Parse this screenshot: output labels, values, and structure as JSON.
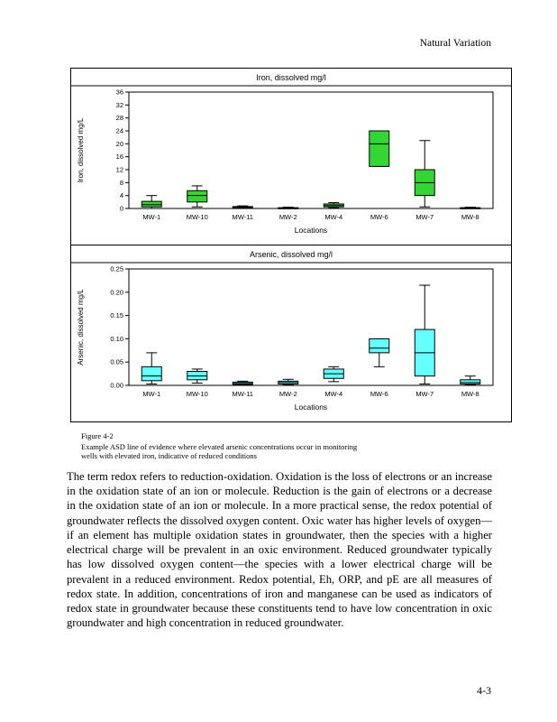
{
  "page": {
    "header_right": "Natural Variation",
    "page_number": "4-3"
  },
  "figure": {
    "caption_label": "Figure 4-2",
    "caption_line1": "Example ASD line of evidence where elevated arsenic concentrations occur in monitoring",
    "caption_line2": "wells with elevated iron, indicative of reduced conditions"
  },
  "body": {
    "paragraph": "The term redox refers to reduction-oxidation. Oxidation is the loss of electrons or an increase in the oxidation state of an ion or molecule. Reduction is the gain of electrons or a decrease in the oxidation state of an ion or molecule. In a more practical sense, the redox potential of groundwater reflects the dissolved oxygen content. Oxic water has higher levels of oxygen—if an element has multiple oxidation states in groundwater, then the species with a higher electrical charge will be prevalent in an oxic environment. Reduced groundwater typically has low dissolved oxygen content—the species with a lower electrical charge will be prevalent in a reduced environment. Redox potential, Eh, ORP, and pE are all measures of redox state. In addition, concentrations of iron and manganese can be used as indicators of redox state in groundwater because these constituents tend to have low concentration in oxic groundwater and high concentration in reduced groundwater."
  },
  "chart_data": [
    {
      "type": "boxplot",
      "title": "Iron, dissolved mg/l",
      "ylabel": "Iron, dissolved mg/L",
      "xlabel": "Locations",
      "categories": [
        "MW-1",
        "MW-10",
        "MW-11",
        "MW-2",
        "MW-4",
        "MW-6",
        "MW-7",
        "MW-8"
      ],
      "ylim": [
        0,
        36
      ],
      "yticks": [
        0,
        4,
        8,
        12,
        16,
        20,
        24,
        28,
        32,
        36
      ],
      "ytick_labels": [
        "0",
        "4",
        "8",
        "12",
        "16",
        "20",
        "24",
        "28",
        "32",
        "36"
      ],
      "box_color": "#33d633",
      "boxes": [
        {
          "low": 0,
          "q1": 0.5,
          "median": 1.2,
          "q3": 2.2,
          "high": 4
        },
        {
          "low": 0.5,
          "q1": 2,
          "median": 4,
          "q3": 5.5,
          "high": 7
        },
        {
          "low": 0,
          "q1": 0.1,
          "median": 0.3,
          "q3": 0.6,
          "high": 0.8
        },
        {
          "low": 0,
          "q1": 0,
          "median": 0.1,
          "q3": 0.25,
          "high": 0.4
        },
        {
          "low": 0.2,
          "q1": 0.5,
          "median": 0.9,
          "q3": 1.4,
          "high": 1.8
        },
        {
          "low": 13,
          "q1": 13,
          "median": 20,
          "q3": 24,
          "high": 24
        },
        {
          "low": 0.5,
          "q1": 4,
          "median": 8,
          "q3": 12,
          "high": 21
        },
        {
          "low": 0,
          "q1": 0,
          "median": 0.1,
          "q3": 0.25,
          "high": 0.4
        }
      ]
    },
    {
      "type": "boxplot",
      "title": "Arsenic, dissolved mg/l",
      "ylabel": "Arsenic, dissolved mg/L",
      "xlabel": "Locations",
      "categories": [
        "MW-1",
        "MW-10",
        "MW-11",
        "MW-2",
        "MW-4",
        "MW-6",
        "MW-7",
        "MW-8"
      ],
      "ylim": [
        0,
        0.25
      ],
      "yticks": [
        0,
        0.05,
        0.1,
        0.15,
        0.2,
        0.25
      ],
      "ytick_labels": [
        "0.00",
        "0.05",
        "0.10",
        "0.15",
        "0.20",
        "0.25"
      ],
      "box_color": "#66ffff",
      "boxes": [
        {
          "low": 0.003,
          "q1": 0.01,
          "median": 0.02,
          "q3": 0.04,
          "high": 0.07
        },
        {
          "low": 0.005,
          "q1": 0.012,
          "median": 0.02,
          "q3": 0.03,
          "high": 0.035
        },
        {
          "low": 0.001,
          "q1": 0.002,
          "median": 0.004,
          "q3": 0.007,
          "high": 0.009
        },
        {
          "low": 0.001,
          "q1": 0.003,
          "median": 0.006,
          "q3": 0.009,
          "high": 0.013
        },
        {
          "low": 0.008,
          "q1": 0.015,
          "median": 0.025,
          "q3": 0.035,
          "high": 0.04
        },
        {
          "low": 0.04,
          "q1": 0.07,
          "median": 0.08,
          "q3": 0.1,
          "high": 0.1
        },
        {
          "low": 0.003,
          "q1": 0.02,
          "median": 0.07,
          "q3": 0.12,
          "high": 0.215
        },
        {
          "low": 0.001,
          "q1": 0.003,
          "median": 0.006,
          "q3": 0.012,
          "high": 0.02
        }
      ]
    }
  ]
}
